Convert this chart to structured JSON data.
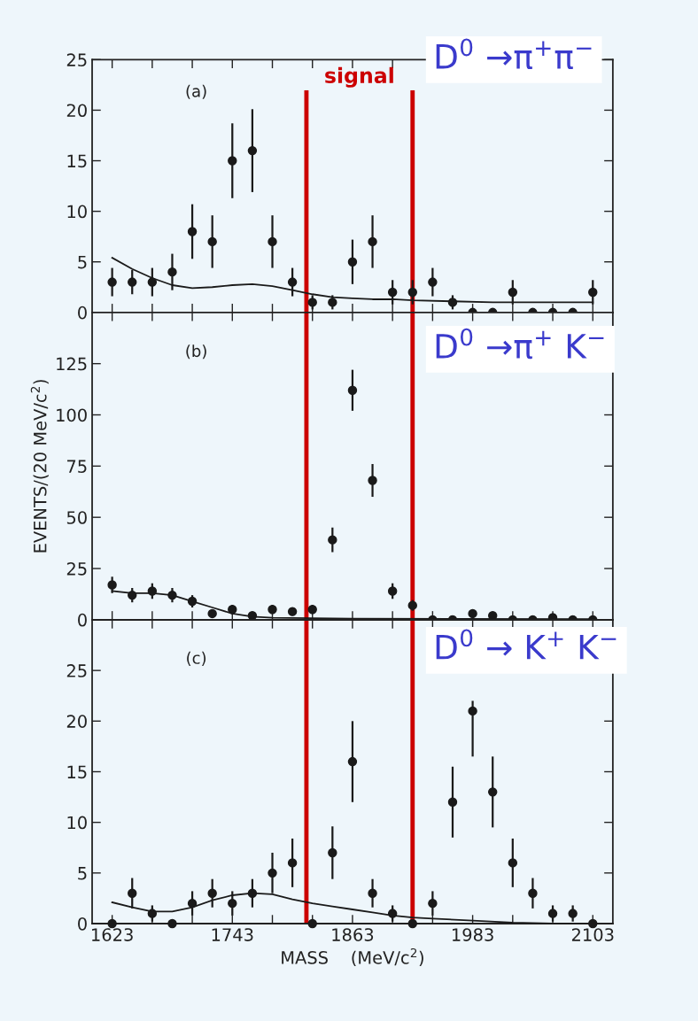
{
  "chart_data": [
    {
      "type": "scatter",
      "xlim": [
        1603,
        2123
      ],
      "ylim": [
        0,
        25
      ],
      "xticks": [
        1623,
        {
          "value": 1663,
          "label": null
        },
        {
          "value": 1703,
          "label": null
        },
        1743,
        {
          "value": 1783,
          "label": null
        },
        {
          "value": 1823,
          "label": null
        },
        1863,
        {
          "value": 1903,
          "label": null
        },
        {
          "value": 1943,
          "label": null
        },
        1983,
        {
          "value": 2023,
          "label": null
        },
        {
          "value": 2063,
          "label": null
        },
        2103
      ],
      "yticks": [
        0,
        5,
        10,
        15,
        20,
        25
      ],
      "tick_labels": "y",
      "marker": "circle",
      "annotations": [
        "(a)",
        "D$^{0}$ →π$^{+}$π$^{−}$"
      ],
      "ref_lines": [
        {
          "axis": "x",
          "value": 1817,
          "label": "signal",
          "color": "#cc0000"
        },
        {
          "axis": "x",
          "value": 1923,
          "color": "#cc0000"
        }
      ],
      "series": [
        {
          "color": "#1a1a1a",
          "x": [
            1623,
            1643,
            1663,
            1683,
            1703,
            1723,
            1743,
            1763,
            1783,
            1803,
            1823,
            1843,
            1863,
            1883,
            1903,
            1923,
            1943,
            1963,
            1983,
            2003,
            2023,
            2043,
            2063,
            2083,
            2103
          ],
          "values": [
            3,
            3,
            3,
            4,
            8,
            7,
            15,
            16,
            7,
            3,
            1,
            1,
            5,
            7,
            2,
            2,
            3,
            1,
            0,
            0,
            2,
            0,
            0,
            0,
            2
          ],
          "errors": [
            1.4,
            1.2,
            1.4,
            1.8,
            2.7,
            2.6,
            3.7,
            4.1,
            2.6,
            1.4,
            0.7,
            0.7,
            2.2,
            2.6,
            1.2,
            1.2,
            1.4,
            0.7,
            null,
            null,
            1.2,
            null,
            null,
            null,
            1.2
          ]
        },
        {
          "type": "line",
          "color": "#1a1a1a",
          "marker": "none",
          "line_style": "solid",
          "x": [
            1623,
            1643,
            1663,
            1683,
            1703,
            1723,
            1743,
            1763,
            1783,
            1803,
            1823,
            1843,
            1863,
            1883,
            1903,
            1923,
            1963,
            2003,
            2103
          ],
          "values": [
            5.4,
            4.3,
            3.4,
            2.7,
            2.4,
            2.5,
            2.7,
            2.8,
            2.6,
            2.2,
            1.8,
            1.5,
            1.4,
            1.3,
            1.3,
            1.2,
            1.1,
            1.0,
            1.0
          ]
        }
      ]
    },
    {
      "type": "scatter",
      "ylabel": "EVENTS/(20 MeV/c$^{2}$)",
      "xlim": [
        1603,
        2123
      ],
      "ylim": [
        0,
        150
      ],
      "xticks": [
        1623,
        {
          "value": 1663,
          "label": null
        },
        {
          "value": 1703,
          "label": null
        },
        1743,
        {
          "value": 1783,
          "label": null
        },
        {
          "value": 1823,
          "label": null
        },
        1863,
        {
          "value": 1903,
          "label": null
        },
        {
          "value": 1943,
          "label": null
        },
        1983,
        {
          "value": 2023,
          "label": null
        },
        {
          "value": 2063,
          "label": null
        },
        2103
      ],
      "yticks": [
        0,
        25,
        50,
        75,
        100,
        125
      ],
      "tick_labels": "y",
      "marker": "circle",
      "annotations": [
        "(b)",
        "D$^{0}$ →π$^{+}$ K$^{−}$"
      ],
      "ref_lines": [
        {
          "axis": "x",
          "value": 1817,
          "color": "#cc0000"
        },
        {
          "axis": "x",
          "value": 1923,
          "color": "#cc0000"
        }
      ],
      "series": [
        {
          "color": "#1a1a1a",
          "x": [
            1623,
            1643,
            1663,
            1683,
            1703,
            1723,
            1743,
            1763,
            1783,
            1803,
            1823,
            1843,
            1863,
            1883,
            1903,
            1923,
            1943,
            1963,
            1983,
            2003,
            2023,
            2043,
            2063,
            2083,
            2103
          ],
          "values": [
            17,
            12,
            14,
            12,
            9,
            3,
            5,
            2,
            5,
            4,
            5,
            39,
            112,
            68,
            14,
            7,
            0,
            0,
            3,
            2,
            0,
            0,
            1,
            0,
            0
          ],
          "errors": [
            4,
            3.5,
            3.8,
            3.5,
            3,
            1.7,
            2.2,
            1.4,
            2.2,
            2,
            2.2,
            6,
            10,
            8,
            3.8,
            2.6,
            null,
            null,
            1.7,
            1.4,
            null,
            null,
            1,
            null,
            null
          ]
        },
        {
          "type": "line",
          "color": "#1a1a1a",
          "marker": "none",
          "line_style": "solid",
          "x": [
            1623,
            1643,
            1663,
            1683,
            1703,
            1723,
            1743,
            1763,
            1783,
            1863,
            2103
          ],
          "values": [
            14,
            13,
            13,
            12,
            9,
            6,
            3,
            1.5,
            1,
            0.5,
            0.3
          ]
        }
      ]
    },
    {
      "type": "scatter",
      "xlabel": "MASS    (MeV/c$^{2}$)",
      "xlim": [
        1603,
        2123
      ],
      "ylim": [
        0,
        30
      ],
      "xticks": [
        1623,
        {
          "value": 1663,
          "label": null
        },
        {
          "value": 1703,
          "label": null
        },
        1743,
        {
          "value": 1783,
          "label": null
        },
        {
          "value": 1823,
          "label": null
        },
        1863,
        {
          "value": 1903,
          "label": null
        },
        {
          "value": 1943,
          "label": null
        },
        1983,
        {
          "value": 2023,
          "label": null
        },
        {
          "value": 2063,
          "label": null
        },
        2103
      ],
      "yticks": [
        0,
        5,
        10,
        15,
        20,
        25
      ],
      "marker": "circle",
      "annotations": [
        "(c)",
        "D$^{0}$ → K$^{+}$ K$^{−}$"
      ],
      "ref_lines": [
        {
          "axis": "x",
          "value": 1817,
          "color": "#cc0000"
        },
        {
          "axis": "x",
          "value": 1923,
          "color": "#cc0000"
        }
      ],
      "series": [
        {
          "color": "#1a1a1a",
          "x": [
            1623,
            1643,
            1663,
            1683,
            1703,
            1723,
            1743,
            1763,
            1783,
            1803,
            1823,
            1843,
            1863,
            1883,
            1903,
            1923,
            1943,
            1963,
            1983,
            2003,
            2023,
            2043,
            2063,
            2083,
            2103
          ],
          "values": [
            0,
            3,
            1,
            0,
            2,
            3,
            2,
            3,
            5,
            6,
            0,
            7,
            16,
            3,
            1,
            0,
            2,
            12,
            21,
            13,
            6,
            3,
            1,
            1,
            0
          ],
          "errors": [
            null,
            1.5,
            0.8,
            null,
            1.2,
            1.4,
            1.2,
            1.4,
            2,
            2.4,
            null,
            2.6,
            4,
            1.4,
            0.8,
            null,
            1.2,
            3.5,
            [
              16.5,
              22
            ],
            3.5,
            2.4,
            1.5,
            0.8,
            0.8,
            null
          ]
        },
        {
          "type": "line",
          "color": "#1a1a1a",
          "marker": "none",
          "line_style": "solid",
          "x": [
            1623,
            1643,
            1663,
            1683,
            1703,
            1723,
            1743,
            1763,
            1783,
            1803,
            1823,
            1843,
            1863,
            1883,
            1903,
            1923,
            1943,
            1983,
            2023,
            2063,
            2103
          ],
          "values": [
            2.1,
            1.6,
            1.2,
            1.2,
            1.6,
            2.3,
            2.8,
            3.0,
            2.9,
            2.4,
            2.0,
            1.7,
            1.4,
            1.1,
            0.8,
            0.6,
            0.5,
            0.3,
            0.1,
            0,
            0
          ]
        }
      ]
    }
  ]
}
